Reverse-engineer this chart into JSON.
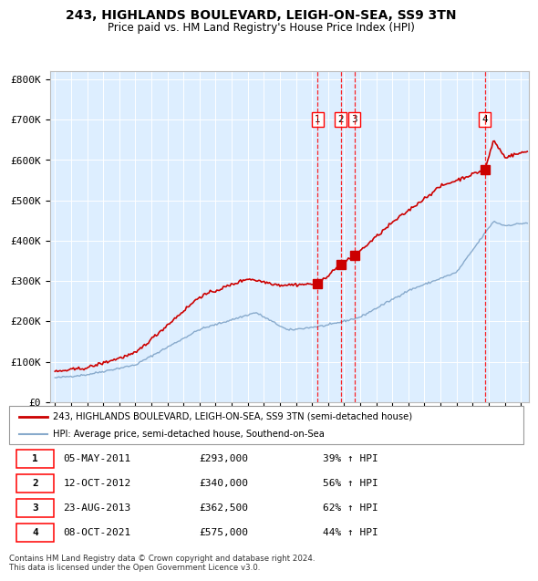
{
  "title": "243, HIGHLANDS BOULEVARD, LEIGH-ON-SEA, SS9 3TN",
  "subtitle": "Price paid vs. HM Land Registry's House Price Index (HPI)",
  "legend_property": "243, HIGHLANDS BOULEVARD, LEIGH-ON-SEA, SS9 3TN (semi-detached house)",
  "legend_hpi": "HPI: Average price, semi-detached house, Southend-on-Sea",
  "property_color": "#cc0000",
  "hpi_color": "#88aacc",
  "background_color": "#ddeeff",
  "sale_dates": [
    2011.35,
    2012.78,
    2013.65,
    2021.77
  ],
  "sale_prices": [
    293000,
    340000,
    362500,
    575000
  ],
  "sale_labels": [
    "1",
    "2",
    "3",
    "4"
  ],
  "table_data": [
    [
      "1",
      "05-MAY-2011",
      "£293,000",
      "39% ↑ HPI"
    ],
    [
      "2",
      "12-OCT-2012",
      "£340,000",
      "56% ↑ HPI"
    ],
    [
      "3",
      "23-AUG-2013",
      "£362,500",
      "62% ↑ HPI"
    ],
    [
      "4",
      "08-OCT-2021",
      "£575,000",
      "44% ↑ HPI"
    ]
  ],
  "footer": "Contains HM Land Registry data © Crown copyright and database right 2024.\nThis data is licensed under the Open Government Licence v3.0.",
  "ylim": [
    0,
    820000
  ],
  "yticks": [
    0,
    100000,
    200000,
    300000,
    400000,
    500000,
    600000,
    700000,
    800000
  ],
  "ytick_labels": [
    "£0",
    "£100K",
    "£200K",
    "£300K",
    "£400K",
    "£500K",
    "£600K",
    "£700K",
    "£800K"
  ],
  "xmin": 1994.7,
  "xmax": 2024.5
}
